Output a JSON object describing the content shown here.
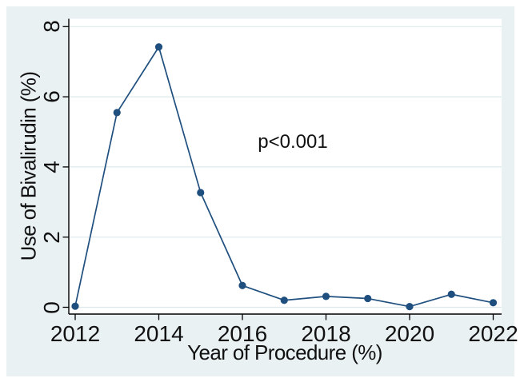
{
  "chart_data": {
    "type": "line",
    "x": [
      2012,
      2013,
      2014,
      2015,
      2016,
      2017,
      2018,
      2019,
      2020,
      2021,
      2022
    ],
    "series": [
      {
        "name": "Use of Bivalirudin",
        "values": [
          0.03,
          5.55,
          7.42,
          3.27,
          0.62,
          0.2,
          0.31,
          0.25,
          0.02,
          0.37,
          0.13
        ]
      }
    ],
    "title": "",
    "xlabel": "Year of Procedure (%)",
    "ylabel": "Use of Bivalirudin (%)",
    "annotation": {
      "text": "p<0.001"
    },
    "xticks": [
      2012,
      2014,
      2016,
      2018,
      2020,
      2022
    ],
    "yticks": [
      0,
      2,
      4,
      6,
      8
    ],
    "xlim": [
      2011.85,
      2022.2
    ],
    "ylim": [
      -0.2,
      8.2
    ],
    "grid": "horizontal",
    "legend_position": "none",
    "marker": "filled-circle",
    "colors": {
      "line": "#1f4f7e",
      "marker": "#1f4f7e",
      "figure_background": "#eaf1f3",
      "plot_background": "#ffffff",
      "gridline": "#dfe9eb",
      "axis": "#000000",
      "text": "#111111"
    }
  }
}
